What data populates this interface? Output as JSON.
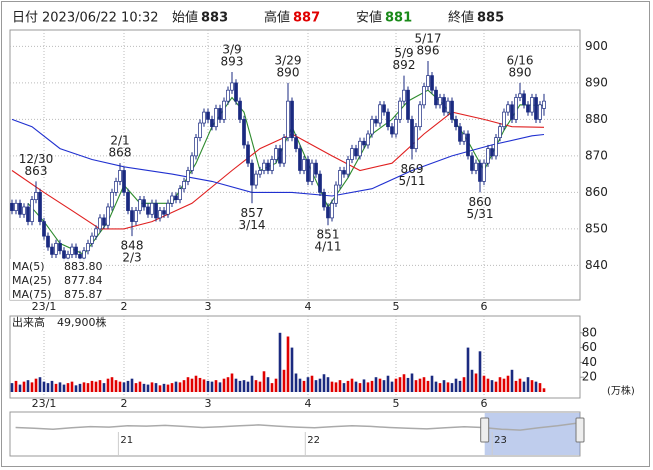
{
  "header": {
    "date_label": "日付",
    "date": "2023/06/22 10:32",
    "open_label": "始値",
    "open": 883,
    "high_label": "高値",
    "high": 887,
    "low_label": "安値",
    "low": 881,
    "close_label": "終値",
    "close": 885
  },
  "chart_data": {
    "type": "candlestick",
    "ohlc": [
      [
        857,
        858,
        854,
        855
      ],
      [
        855,
        858,
        854,
        857
      ],
      [
        857,
        858,
        853,
        854
      ],
      [
        854,
        857,
        853,
        856
      ],
      [
        856,
        857,
        851,
        852
      ],
      [
        852,
        859,
        851,
        858
      ],
      [
        858,
        863,
        857,
        860
      ],
      [
        860,
        861,
        851,
        852
      ],
      [
        852,
        853,
        847,
        848
      ],
      [
        848,
        849,
        844,
        845
      ],
      [
        845,
        846,
        842,
        843
      ],
      [
        843,
        847,
        842,
        846
      ],
      [
        846,
        847,
        843,
        844
      ],
      [
        844,
        845,
        841,
        842
      ],
      [
        842,
        844,
        841,
        843
      ],
      [
        843,
        846,
        842,
        845
      ],
      [
        845,
        846,
        842,
        843
      ],
      [
        843,
        844,
        841,
        842
      ],
      [
        842,
        845,
        841,
        844
      ],
      [
        844,
        847,
        843,
        846
      ],
      [
        846,
        849,
        845,
        848
      ],
      [
        848,
        851,
        847,
        850
      ],
      [
        850,
        854,
        849,
        853
      ],
      [
        853,
        854,
        850,
        851
      ],
      [
        851,
        857,
        850,
        856
      ],
      [
        856,
        861,
        855,
        860
      ],
      [
        860,
        864,
        859,
        863
      ],
      [
        863,
        868,
        862,
        866
      ],
      [
        866,
        867,
        859,
        860
      ],
      [
        860,
        861,
        854,
        855
      ],
      [
        855,
        856,
        848,
        852
      ],
      [
        852,
        856,
        851,
        855
      ],
      [
        855,
        859,
        854,
        858
      ],
      [
        858,
        859,
        855,
        856
      ],
      [
        856,
        857,
        853,
        854
      ],
      [
        854,
        858,
        853,
        857
      ],
      [
        857,
        858,
        852,
        853
      ],
      [
        853,
        856,
        852,
        855
      ],
      [
        855,
        856,
        853,
        854
      ],
      [
        854,
        858,
        853,
        857
      ],
      [
        857,
        860,
        856,
        859
      ],
      [
        859,
        860,
        857,
        858
      ],
      [
        858,
        862,
        857,
        861
      ],
      [
        861,
        864,
        860,
        863
      ],
      [
        863,
        867,
        862,
        866
      ],
      [
        866,
        871,
        865,
        870
      ],
      [
        870,
        876,
        869,
        875
      ],
      [
        875,
        880,
        874,
        879
      ],
      [
        879,
        883,
        878,
        882
      ],
      [
        882,
        883,
        879,
        880
      ],
      [
        880,
        881,
        877,
        878
      ],
      [
        878,
        884,
        877,
        883
      ],
      [
        883,
        884,
        879,
        880
      ],
      [
        880,
        886,
        879,
        885
      ],
      [
        885,
        889,
        884,
        888
      ],
      [
        888,
        893,
        887,
        890
      ],
      [
        890,
        891,
        884,
        885
      ],
      [
        885,
        886,
        879,
        880
      ],
      [
        880,
        881,
        872,
        873
      ],
      [
        873,
        874,
        867,
        868
      ],
      [
        868,
        869,
        857,
        862
      ],
      [
        862,
        866,
        861,
        865
      ],
      [
        865,
        867,
        864,
        866
      ],
      [
        866,
        869,
        865,
        868
      ],
      [
        868,
        869,
        865,
        866
      ],
      [
        866,
        870,
        865,
        869
      ],
      [
        869,
        873,
        868,
        872
      ],
      [
        872,
        873,
        867,
        868
      ],
      [
        868,
        876,
        867,
        875
      ],
      [
        875,
        890,
        874,
        885
      ],
      [
        885,
        886,
        874,
        875
      ],
      [
        875,
        876,
        871,
        872
      ],
      [
        872,
        873,
        865,
        866
      ],
      [
        866,
        870,
        865,
        869
      ],
      [
        869,
        870,
        862,
        863
      ],
      [
        863,
        869,
        862,
        868
      ],
      [
        868,
        869,
        864,
        865
      ],
      [
        865,
        866,
        859,
        860
      ],
      [
        860,
        861,
        855,
        856
      ],
      [
        856,
        857,
        851,
        853
      ],
      [
        853,
        858,
        852,
        857
      ],
      [
        857,
        863,
        856,
        862
      ],
      [
        862,
        867,
        861,
        866
      ],
      [
        866,
        867,
        864,
        865
      ],
      [
        865,
        870,
        864,
        869
      ],
      [
        869,
        873,
        868,
        872
      ],
      [
        872,
        873,
        869,
        870
      ],
      [
        870,
        875,
        869,
        874
      ],
      [
        874,
        875,
        872,
        873
      ],
      [
        873,
        877,
        872,
        876
      ],
      [
        876,
        881,
        875,
        880
      ],
      [
        880,
        881,
        878,
        879
      ],
      [
        879,
        885,
        878,
        884
      ],
      [
        884,
        885,
        881,
        882
      ],
      [
        882,
        883,
        877,
        878
      ],
      [
        878,
        879,
        875,
        876
      ],
      [
        876,
        881,
        875,
        880
      ],
      [
        880,
        886,
        879,
        885
      ],
      [
        885,
        892,
        884,
        888
      ],
      [
        888,
        889,
        879,
        880
      ],
      [
        880,
        881,
        869,
        872
      ],
      [
        872,
        879,
        871,
        878
      ],
      [
        878,
        885,
        877,
        884
      ],
      [
        884,
        890,
        883,
        889
      ],
      [
        889,
        896,
        888,
        892
      ],
      [
        892,
        893,
        887,
        888
      ],
      [
        888,
        889,
        883,
        884
      ],
      [
        884,
        887,
        883,
        886
      ],
      [
        886,
        887,
        881,
        882
      ],
      [
        882,
        886,
        881,
        885
      ],
      [
        885,
        886,
        879,
        880
      ],
      [
        880,
        881,
        877,
        878
      ],
      [
        878,
        879,
        873,
        874
      ],
      [
        874,
        877,
        873,
        876
      ],
      [
        876,
        877,
        869,
        870
      ],
      [
        870,
        871,
        865,
        866
      ],
      [
        866,
        869,
        865,
        868
      ],
      [
        868,
        869,
        860,
        863
      ],
      [
        863,
        869,
        862,
        868
      ],
      [
        868,
        873,
        867,
        872
      ],
      [
        872,
        873,
        869,
        870
      ],
      [
        870,
        876,
        869,
        875
      ],
      [
        875,
        879,
        874,
        878
      ],
      [
        878,
        883,
        877,
        882
      ],
      [
        882,
        885,
        881,
        884
      ],
      [
        884,
        885,
        879,
        880
      ],
      [
        880,
        887,
        879,
        886
      ],
      [
        886,
        890,
        885,
        887
      ],
      [
        887,
        888,
        883,
        884
      ],
      [
        884,
        885,
        881,
        882
      ],
      [
        882,
        887,
        881,
        886
      ],
      [
        886,
        887,
        879,
        880
      ],
      [
        880,
        885,
        879,
        884
      ],
      [
        883,
        887,
        881,
        885
      ]
    ],
    "xlim": [
      -0.5,
      142
    ],
    "xticks": [
      {
        "value": 8,
        "label": "23/1"
      },
      {
        "value": 28,
        "label": "2"
      },
      {
        "value": 49,
        "label": "3"
      },
      {
        "value": 74,
        "label": "4"
      },
      {
        "value": 96,
        "label": "5"
      },
      {
        "value": 118,
        "label": "6"
      }
    ],
    "ylim": [
      830.5,
      904.5
    ],
    "yticks": [
      840,
      850,
      860,
      870,
      880,
      890,
      900
    ],
    "grid": true,
    "up_color": "#ffffff",
    "down_color": "#1a2a80",
    "edge_color": "#1a2a80",
    "moving_averages": [
      {
        "name": "MA(5)",
        "color": "#2e8b2e",
        "legend_value": "883.80",
        "x": [
          4,
          8,
          12,
          18,
          24,
          28,
          32,
          40,
          46,
          50,
          55,
          58,
          62,
          66,
          70,
          74,
          79,
          84,
          90,
          95,
          99,
          104,
          108,
          114,
          118,
          123,
          127,
          133
        ],
        "values": [
          857,
          852,
          846,
          843,
          852,
          862,
          857,
          857,
          868,
          878,
          886,
          882,
          866,
          868,
          878,
          868,
          856,
          864,
          876,
          880,
          885,
          888,
          884,
          874,
          866,
          877,
          884,
          883.8
        ]
      },
      {
        "name": "MA(25)",
        "color": "#e02020",
        "legend_value": "877.84",
        "x": [
          0,
          8,
          15,
          22,
          28,
          35,
          45,
          55,
          62,
          70,
          80,
          87,
          95,
          103,
          110,
          118,
          125,
          133
        ],
        "values": [
          866,
          860,
          855,
          850,
          850,
          852,
          857,
          866,
          872,
          876,
          870,
          866,
          868,
          876,
          882,
          880,
          878,
          877.84
        ]
      },
      {
        "name": "MA(75)",
        "color": "#2030d0",
        "legend_value": "875.87",
        "x": [
          0,
          5,
          12,
          20,
          28,
          40,
          50,
          60,
          70,
          80,
          90,
          100,
          110,
          120,
          130,
          133
        ],
        "values": [
          880,
          878,
          872,
          869,
          867,
          865,
          863,
          860,
          860,
          859,
          861,
          866,
          870,
          873,
          875.5,
          875.87
        ]
      }
    ],
    "annotations": [
      {
        "x": 6,
        "date": "12/30",
        "value": 863,
        "position": "above"
      },
      {
        "x": 27,
        "date": "2/1",
        "value": 868,
        "position": "above"
      },
      {
        "x": 30,
        "date": "2/3",
        "value": 848,
        "position": "below"
      },
      {
        "x": 55,
        "date": "3/9",
        "value": 893,
        "position": "above"
      },
      {
        "x": 60,
        "date": "3/14",
        "value": 857,
        "position": "below"
      },
      {
        "x": 69,
        "date": "3/29",
        "value": 890,
        "position": "above"
      },
      {
        "x": 79,
        "date": "4/11",
        "value": 851,
        "position": "below"
      },
      {
        "x": 98,
        "date": "5/9",
        "value": 892,
        "position": "above"
      },
      {
        "x": 100,
        "date": "5/11",
        "value": 869,
        "position": "below"
      },
      {
        "x": 104,
        "date": "5/17",
        "value": 896,
        "position": "above"
      },
      {
        "x": 117,
        "date": "5/31",
        "value": 860,
        "position": "below"
      },
      {
        "x": 127,
        "date": "6/16",
        "value": 890,
        "position": "above"
      }
    ],
    "volume": {
      "title": "出来高",
      "total_label": "49,900株",
      "unit": "(万株)",
      "values": [
        12,
        15,
        10,
        14,
        16,
        13,
        18,
        20,
        14,
        12,
        15,
        11,
        13,
        10,
        12,
        14,
        9,
        11,
        13,
        12,
        15,
        14,
        16,
        12,
        18,
        20,
        16,
        14,
        13,
        15,
        18,
        12,
        14,
        11,
        10,
        13,
        12,
        9,
        11,
        10,
        12,
        14,
        13,
        16,
        20,
        18,
        22,
        19,
        17,
        15,
        14,
        16,
        13,
        18,
        20,
        25,
        18,
        15,
        16,
        14,
        22,
        16,
        14,
        28,
        20,
        12,
        18,
        80,
        30,
        75,
        60,
        25,
        18,
        15,
        20,
        22,
        16,
        18,
        24,
        20,
        14,
        13,
        16,
        12,
        15,
        18,
        14,
        12,
        17,
        13,
        15,
        20,
        18,
        16,
        22,
        14,
        18,
        20,
        24,
        19,
        25,
        16,
        18,
        20,
        15,
        22,
        14,
        12,
        16,
        13,
        12,
        18,
        15,
        20,
        60,
        30,
        25,
        55,
        22,
        18,
        16,
        14,
        20,
        18,
        22,
        30,
        15,
        18,
        14,
        20,
        16,
        14,
        12,
        4.99
      ],
      "ylim": [
        0,
        100
      ],
      "yticks": [
        20,
        40,
        60,
        80
      ],
      "up_color": "#e00000",
      "down_color": "#1a2a80",
      "flat_color": "#999999"
    },
    "navigator": {
      "x": [
        2020.45,
        2020.55,
        2020.65,
        2020.75,
        2020.85,
        2020.95,
        2021.05,
        2021.15,
        2021.25,
        2021.35,
        2021.45,
        2021.55,
        2021.65,
        2021.75,
        2021.85,
        2021.95,
        2022.05,
        2022.15,
        2022.25,
        2022.35,
        2022.45,
        2022.55,
        2022.65,
        2022.75,
        2022.85,
        2022.95,
        2023.05,
        2023.15,
        2023.25,
        2023.35,
        2023.45
      ],
      "values": [
        860,
        855,
        850,
        858,
        865,
        862,
        870,
        868,
        872,
        866,
        860,
        864,
        870,
        875,
        868,
        862,
        858,
        865,
        870,
        866,
        860,
        855,
        852,
        858,
        864,
        860,
        850,
        845,
        858,
        870,
        885
      ],
      "xlim": [
        2020.42,
        2023.47
      ],
      "ylim": [
        700,
        950
      ],
      "xticks": [
        {
          "value": 2021,
          "label": "21"
        },
        {
          "value": 2022,
          "label": "22"
        },
        {
          "value": 2023,
          "label": "23"
        }
      ],
      "range": [
        2022.96,
        2023.47
      ],
      "color": "#aaaaaa",
      "range_color": "#7090d8"
    }
  }
}
